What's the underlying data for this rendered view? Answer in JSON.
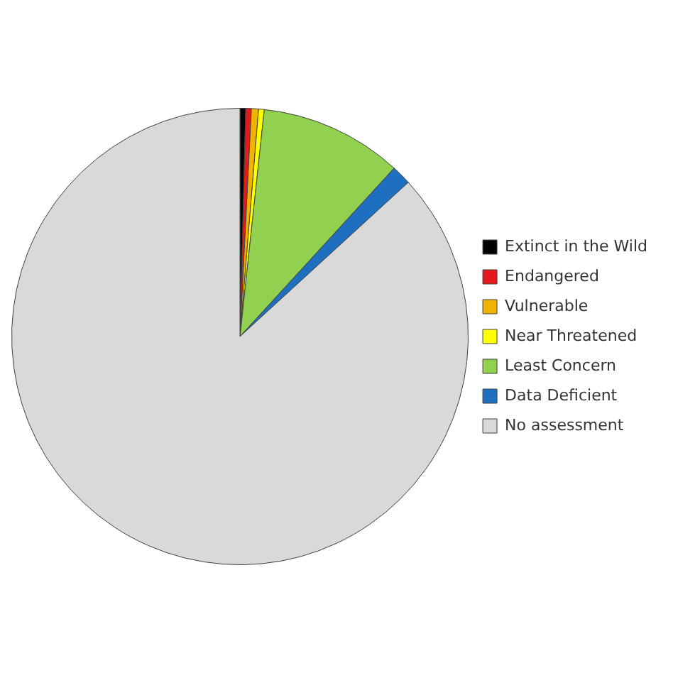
{
  "chart_data": {
    "type": "pie",
    "categories": [
      "Extinct in the Wild",
      "Endangered",
      "Vulnerable",
      "Near Threatened",
      "Least Concern",
      "Data Deficient",
      "No assessment"
    ],
    "values": [
      0.4,
      0.4,
      0.5,
      0.4,
      10.1,
      1.4,
      86.8
    ],
    "colors": [
      "#000000",
      "#e31a1c",
      "#f0b400",
      "#ffff00",
      "#92d050",
      "#1f6fc0",
      "#d9d9d9"
    ],
    "legend": "right"
  }
}
